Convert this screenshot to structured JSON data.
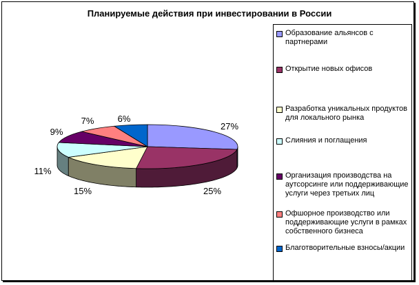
{
  "chart_data": {
    "type": "pie",
    "title": "Планируемые действия при инвестировании в России",
    "legend_position": "right",
    "categories": [
      "Образование альянсов с партнерами",
      "Открытие новых офисов",
      "Разработка уникальных продуктов для локального рынка",
      "Слияния и поглащения",
      "Организация производства на аутсорсинге или поддерживающие услуги через третьих лиц",
      "Офшорное производство или поддерживающие услуги в рамках собственного бизнеса",
      "Благотворительные взносы/акции"
    ],
    "values": [
      27,
      25,
      15,
      11,
      9,
      7,
      6
    ],
    "labels": [
      "27%",
      "25%",
      "15%",
      "11%",
      "9%",
      "7%",
      "6%"
    ],
    "colors": [
      "#9999FF",
      "#993366",
      "#FFFFCC",
      "#CCFFFF",
      "#660066",
      "#FF8080",
      "#0066CC"
    ],
    "side_colors": [
      "#6666AA",
      "#4F1B38",
      "#808066",
      "#668080",
      "#330033",
      "#AA5555",
      "#003366"
    ]
  }
}
